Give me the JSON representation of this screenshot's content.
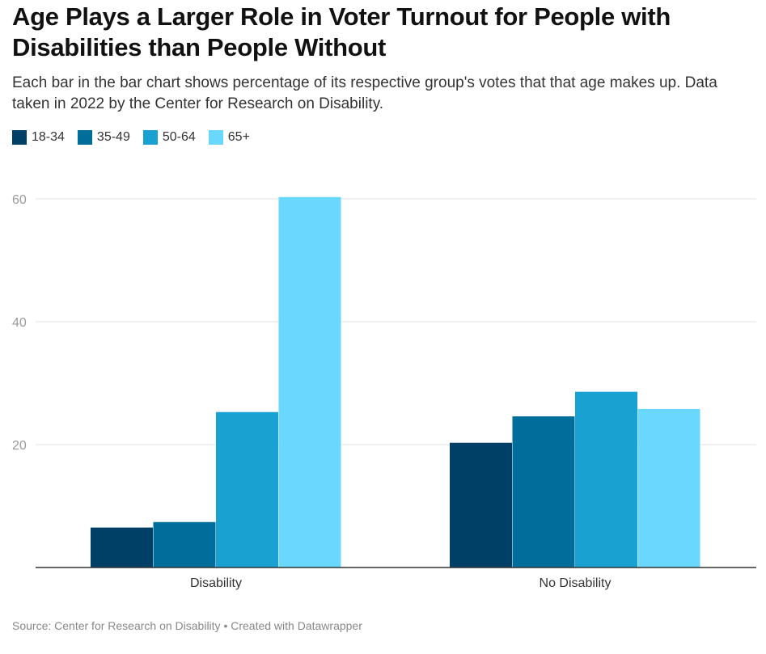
{
  "title": "Age Plays a Larger Role in Voter Turnout for People with Disabilities than People Without",
  "subtitle": "Each bar in the bar chart shows percentage of its respective group's votes that that age makes up. Data taken in 2022 by the Center for Research on Disability.",
  "source": "Source: Center for Research on Disability • Created with Datawrapper",
  "chart_data": {
    "type": "bar",
    "categories": [
      "Disability",
      "No Disability"
    ],
    "series": [
      {
        "name": "18-34",
        "color": "#003f66",
        "values": [
          6.5,
          20.3
        ]
      },
      {
        "name": "35-49",
        "color": "#006d9a",
        "values": [
          7.4,
          24.6
        ]
      },
      {
        "name": "50-64",
        "color": "#19a2d1",
        "values": [
          25.3,
          28.6
        ]
      },
      {
        "name": "65+",
        "color": "#6ad7ff",
        "values": [
          60.3,
          25.8
        ]
      }
    ],
    "yticks": [
      20,
      40,
      60
    ],
    "ylim": [
      0,
      60
    ],
    "grid": true,
    "legend": "top-left"
  }
}
